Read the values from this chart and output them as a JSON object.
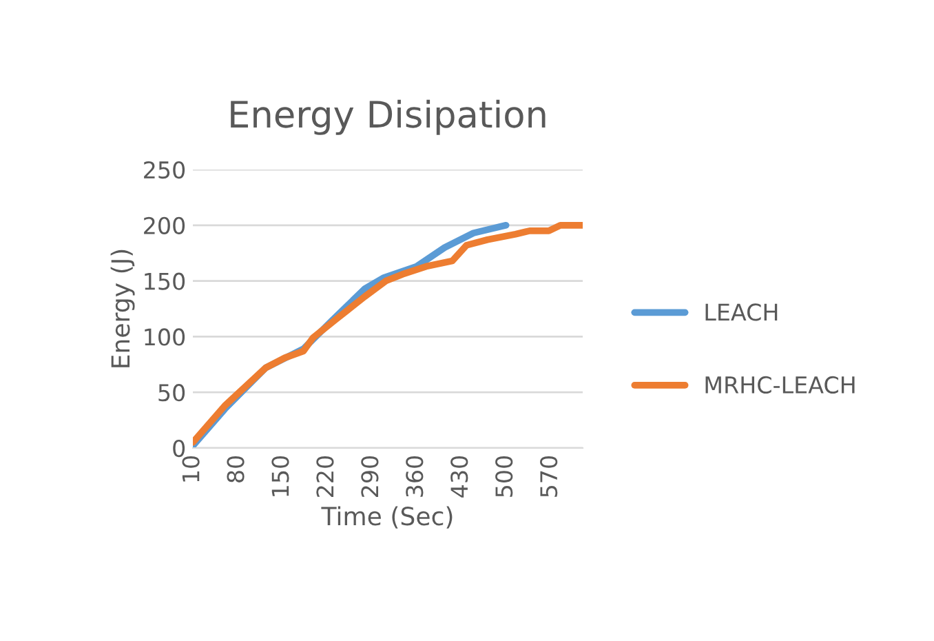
{
  "chart_data": {
    "type": "line",
    "title": "Energy Disipation",
    "xlabel": "Time (Sec)",
    "ylabel": "Energy (J)",
    "xlim": [
      10,
      620
    ],
    "xticks": [
      10,
      80,
      150,
      220,
      290,
      360,
      430,
      500,
      570
    ],
    "ylim": [
      0,
      250
    ],
    "yticks": [
      0,
      50,
      100,
      150,
      200,
      250
    ],
    "grid": "y",
    "legend": "right",
    "series": [
      {
        "name": "LEACH",
        "color": "#5b9bd5",
        "x": [
          10,
          60,
          124,
          183,
          227,
          279,
          309,
          360,
          404,
          449,
          500
        ],
        "values": [
          2,
          35,
          72,
          89,
          114,
          143,
          153,
          163,
          180,
          193,
          200
        ]
      },
      {
        "name": "MRHC-LEACH",
        "color": "#ed7d31",
        "x": [
          10,
          60,
          124,
          154,
          183,
          198,
          235,
          279,
          312,
          338,
          375,
          416,
          438,
          471,
          515,
          537,
          567,
          585,
          620
        ],
        "values": [
          5,
          38,
          72,
          81,
          87,
          99,
          116,
          136,
          150,
          156,
          163,
          168,
          182,
          187,
          192,
          195,
          195,
          200,
          200
        ]
      }
    ]
  }
}
